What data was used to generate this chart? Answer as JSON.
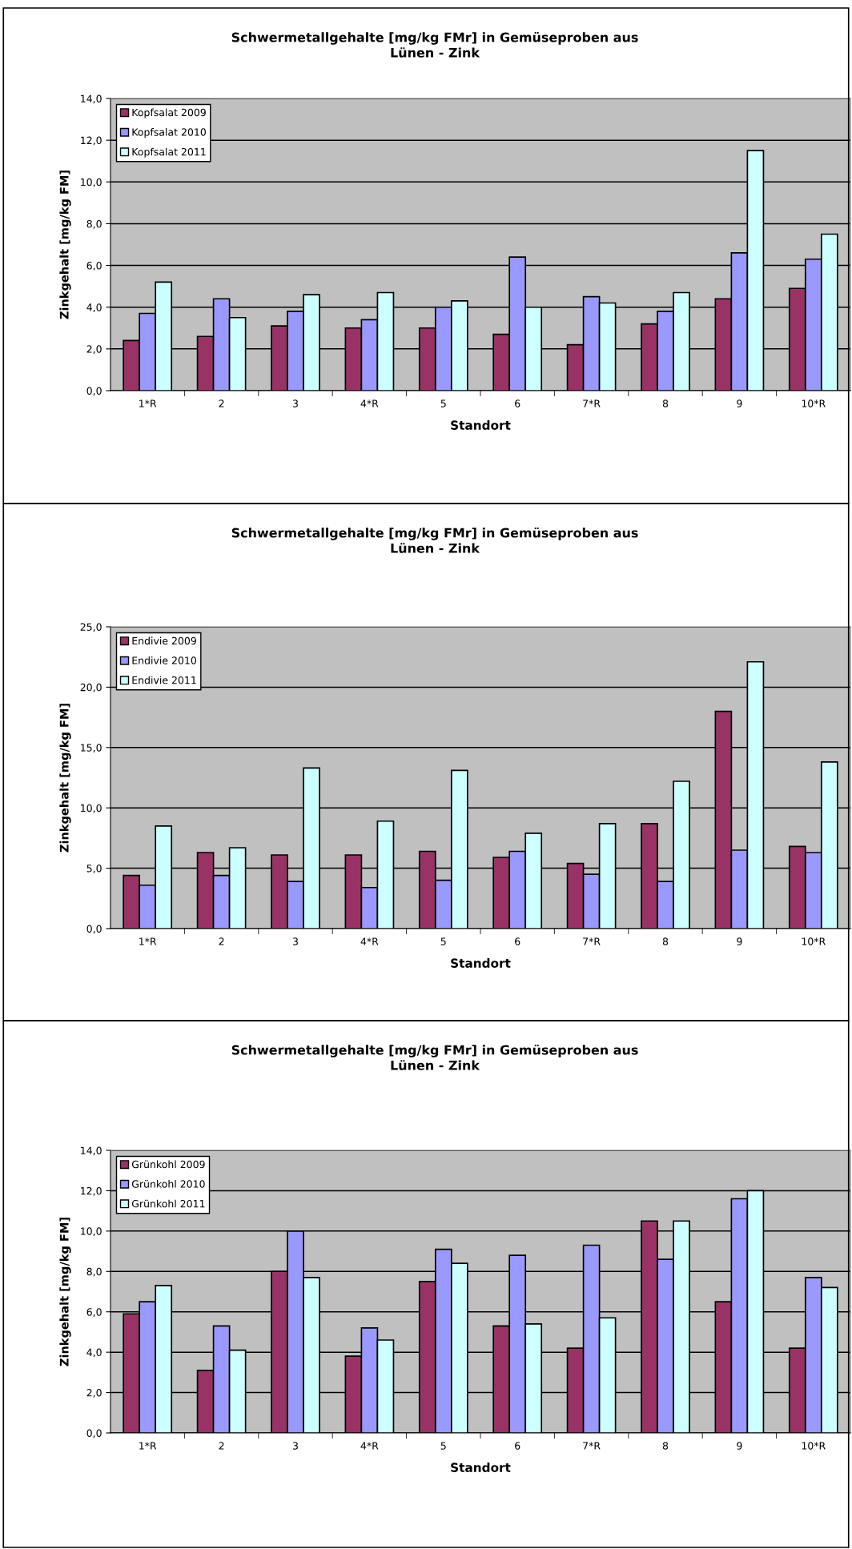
{
  "chart_data": [
    {
      "type": "bar",
      "title": "Schwermetallgehalte [mg/kg FMr] in Gemüseproben aus\nLünen - Zink",
      "xlabel": "Standort",
      "ylabel": "Zinkgehalt [mg/kg FM]",
      "categories": [
        "1*R",
        "2",
        "3",
        "4*R",
        "5",
        "6",
        "7*R",
        "8",
        "9",
        "10*R"
      ],
      "series": [
        {
          "name": "Kopfsalat 2009",
          "color": "#993366",
          "values": [
            2.4,
            2.6,
            3.1,
            3.0,
            3.0,
            2.7,
            2.2,
            3.2,
            4.4,
            4.9
          ]
        },
        {
          "name": "Kopfsalat 2010",
          "color": "#9999ff",
          "values": [
            3.7,
            4.4,
            3.8,
            3.4,
            4.0,
            6.4,
            4.5,
            3.8,
            6.6,
            6.3
          ]
        },
        {
          "name": "Kopfsalat 2011",
          "color": "#ccffff",
          "values": [
            5.2,
            3.5,
            4.6,
            4.7,
            4.3,
            4.0,
            4.2,
            4.7,
            11.5,
            7.5
          ]
        }
      ],
      "ylim": [
        0,
        14
      ],
      "yticks": [
        {
          "value": 0,
          "label": "0,0"
        },
        {
          "value": 2,
          "label": "2,0"
        },
        {
          "value": 4,
          "label": "4,0"
        },
        {
          "value": 6,
          "label": "6,0"
        },
        {
          "value": 8,
          "label": "8,0"
        },
        {
          "value": 10,
          "label": "10,0"
        },
        {
          "value": 12,
          "label": "12,0"
        },
        {
          "value": 14,
          "label": "14,0"
        }
      ],
      "grid": "y",
      "legend": "top left"
    },
    {
      "type": "bar",
      "title": "Schwermetallgehalte [mg/kg FMr] in Gemüseproben aus\nLünen - Zink",
      "xlabel": "Standort",
      "ylabel": "Zinkgehalt [mg/kg FM]",
      "categories": [
        "1*R",
        "2",
        "3",
        "4*R",
        "5",
        "6",
        "7*R",
        "8",
        "9",
        "10*R"
      ],
      "series": [
        {
          "name": "Endivie 2009",
          "color": "#993366",
          "values": [
            4.4,
            6.3,
            6.1,
            6.1,
            6.4,
            5.9,
            5.4,
            8.7,
            18.0,
            6.8
          ]
        },
        {
          "name": "Endivie 2010",
          "color": "#9999ff",
          "values": [
            3.6,
            4.4,
            3.9,
            3.4,
            4.0,
            6.4,
            4.5,
            3.9,
            6.5,
            6.3
          ]
        },
        {
          "name": "Endivie 2011",
          "color": "#ccffff",
          "values": [
            8.5,
            6.7,
            13.3,
            8.9,
            13.1,
            7.9,
            8.7,
            12.2,
            22.1,
            13.8
          ]
        }
      ],
      "ylim": [
        0,
        25
      ],
      "yticks": [
        {
          "value": 0,
          "label": "0,0"
        },
        {
          "value": 5,
          "label": "5,0"
        },
        {
          "value": 10,
          "label": "10,0"
        },
        {
          "value": 15,
          "label": "15,0"
        },
        {
          "value": 20,
          "label": "20,0"
        },
        {
          "value": 25,
          "label": "25,0"
        }
      ],
      "grid": "y",
      "legend": "top left"
    },
    {
      "type": "bar",
      "title": "Schwermetallgehalte [mg/kg FMr] in Gemüseproben aus\nLünen - Zink",
      "xlabel": "Standort",
      "ylabel": "Zinkgehalt [mg/kg FM]",
      "categories": [
        "1*R",
        "2",
        "3",
        "4*R",
        "5",
        "6",
        "7*R",
        "8",
        "9",
        "10*R"
      ],
      "series": [
        {
          "name": "Grünkohl 2009",
          "color": "#993366",
          "values": [
            5.9,
            3.1,
            8.0,
            3.8,
            7.5,
            5.3,
            4.2,
            10.5,
            6.5,
            4.2
          ]
        },
        {
          "name": "Grünkohl 2010",
          "color": "#9999ff",
          "values": [
            6.5,
            5.3,
            10.0,
            5.2,
            9.1,
            8.8,
            9.3,
            8.6,
            11.6,
            7.7
          ]
        },
        {
          "name": "Grünkohl 2011",
          "color": "#ccffff",
          "values": [
            7.3,
            4.1,
            7.7,
            4.6,
            8.4,
            5.4,
            5.7,
            10.5,
            12.0,
            7.2
          ]
        }
      ],
      "ylim": [
        0,
        14
      ],
      "yticks": [
        {
          "value": 0,
          "label": "0,0"
        },
        {
          "value": 2,
          "label": "2,0"
        },
        {
          "value": 4,
          "label": "4,0"
        },
        {
          "value": 6,
          "label": "6,0"
        },
        {
          "value": 8,
          "label": "8,0"
        },
        {
          "value": 10,
          "label": "10,0"
        },
        {
          "value": 12,
          "label": "12,0"
        },
        {
          "value": 14,
          "label": "14,0"
        }
      ],
      "grid": "y",
      "legend": "top left"
    }
  ]
}
